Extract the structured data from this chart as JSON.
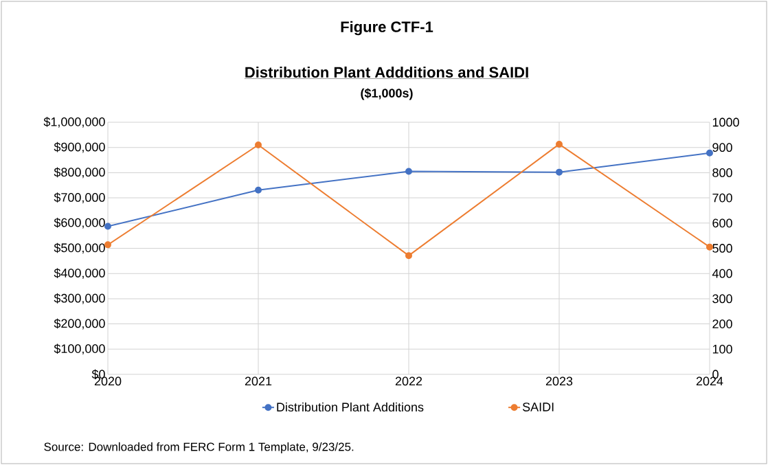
{
  "chart_data": {
    "type": "line",
    "title": "Figure CTF-1",
    "subtitle": "Distribution Plant Addditions and SAIDI",
    "annotations": [
      "($1,000s)",
      "Source: Downloaded from FERC Form 1 Template, 9/23/25."
    ],
    "categories": [
      "2020",
      "2021",
      "2022",
      "2023",
      "2024"
    ],
    "series": [
      {
        "name": "Distribution Plant Additions",
        "color": "#4472c4",
        "values": [
          587000,
          731000,
          805000,
          802000,
          878000
        ]
      },
      {
        "name": "SAIDI",
        "color": "#ed7d31",
        "axis": "y2",
        "values": [
          514,
          910,
          471,
          913,
          505
        ]
      }
    ],
    "ylim": [
      0,
      1000000
    ],
    "yticks": [
      {
        "value": 0,
        "label": "$0"
      },
      {
        "value": 100000,
        "label": "$100,000"
      },
      {
        "value": 200000,
        "label": "$200,000"
      },
      {
        "value": 300000,
        "label": "$300,000"
      },
      {
        "value": 400000,
        "label": "$400,000"
      },
      {
        "value": 500000,
        "label": "$500,000"
      },
      {
        "value": 600000,
        "label": "$600,000"
      },
      {
        "value": 700000,
        "label": "$700,000"
      },
      {
        "value": 800000,
        "label": "$800,000"
      },
      {
        "value": 900000,
        "label": "$900,000"
      },
      {
        "value": 1000000,
        "label": "$1,000,000"
      }
    ],
    "y2lim": [
      0,
      1000
    ],
    "y2ticks": [
      0,
      100,
      200,
      300,
      400,
      500,
      600,
      700,
      800,
      900,
      1000
    ],
    "grid": true,
    "legend": "bottom",
    "marker": "circle"
  }
}
